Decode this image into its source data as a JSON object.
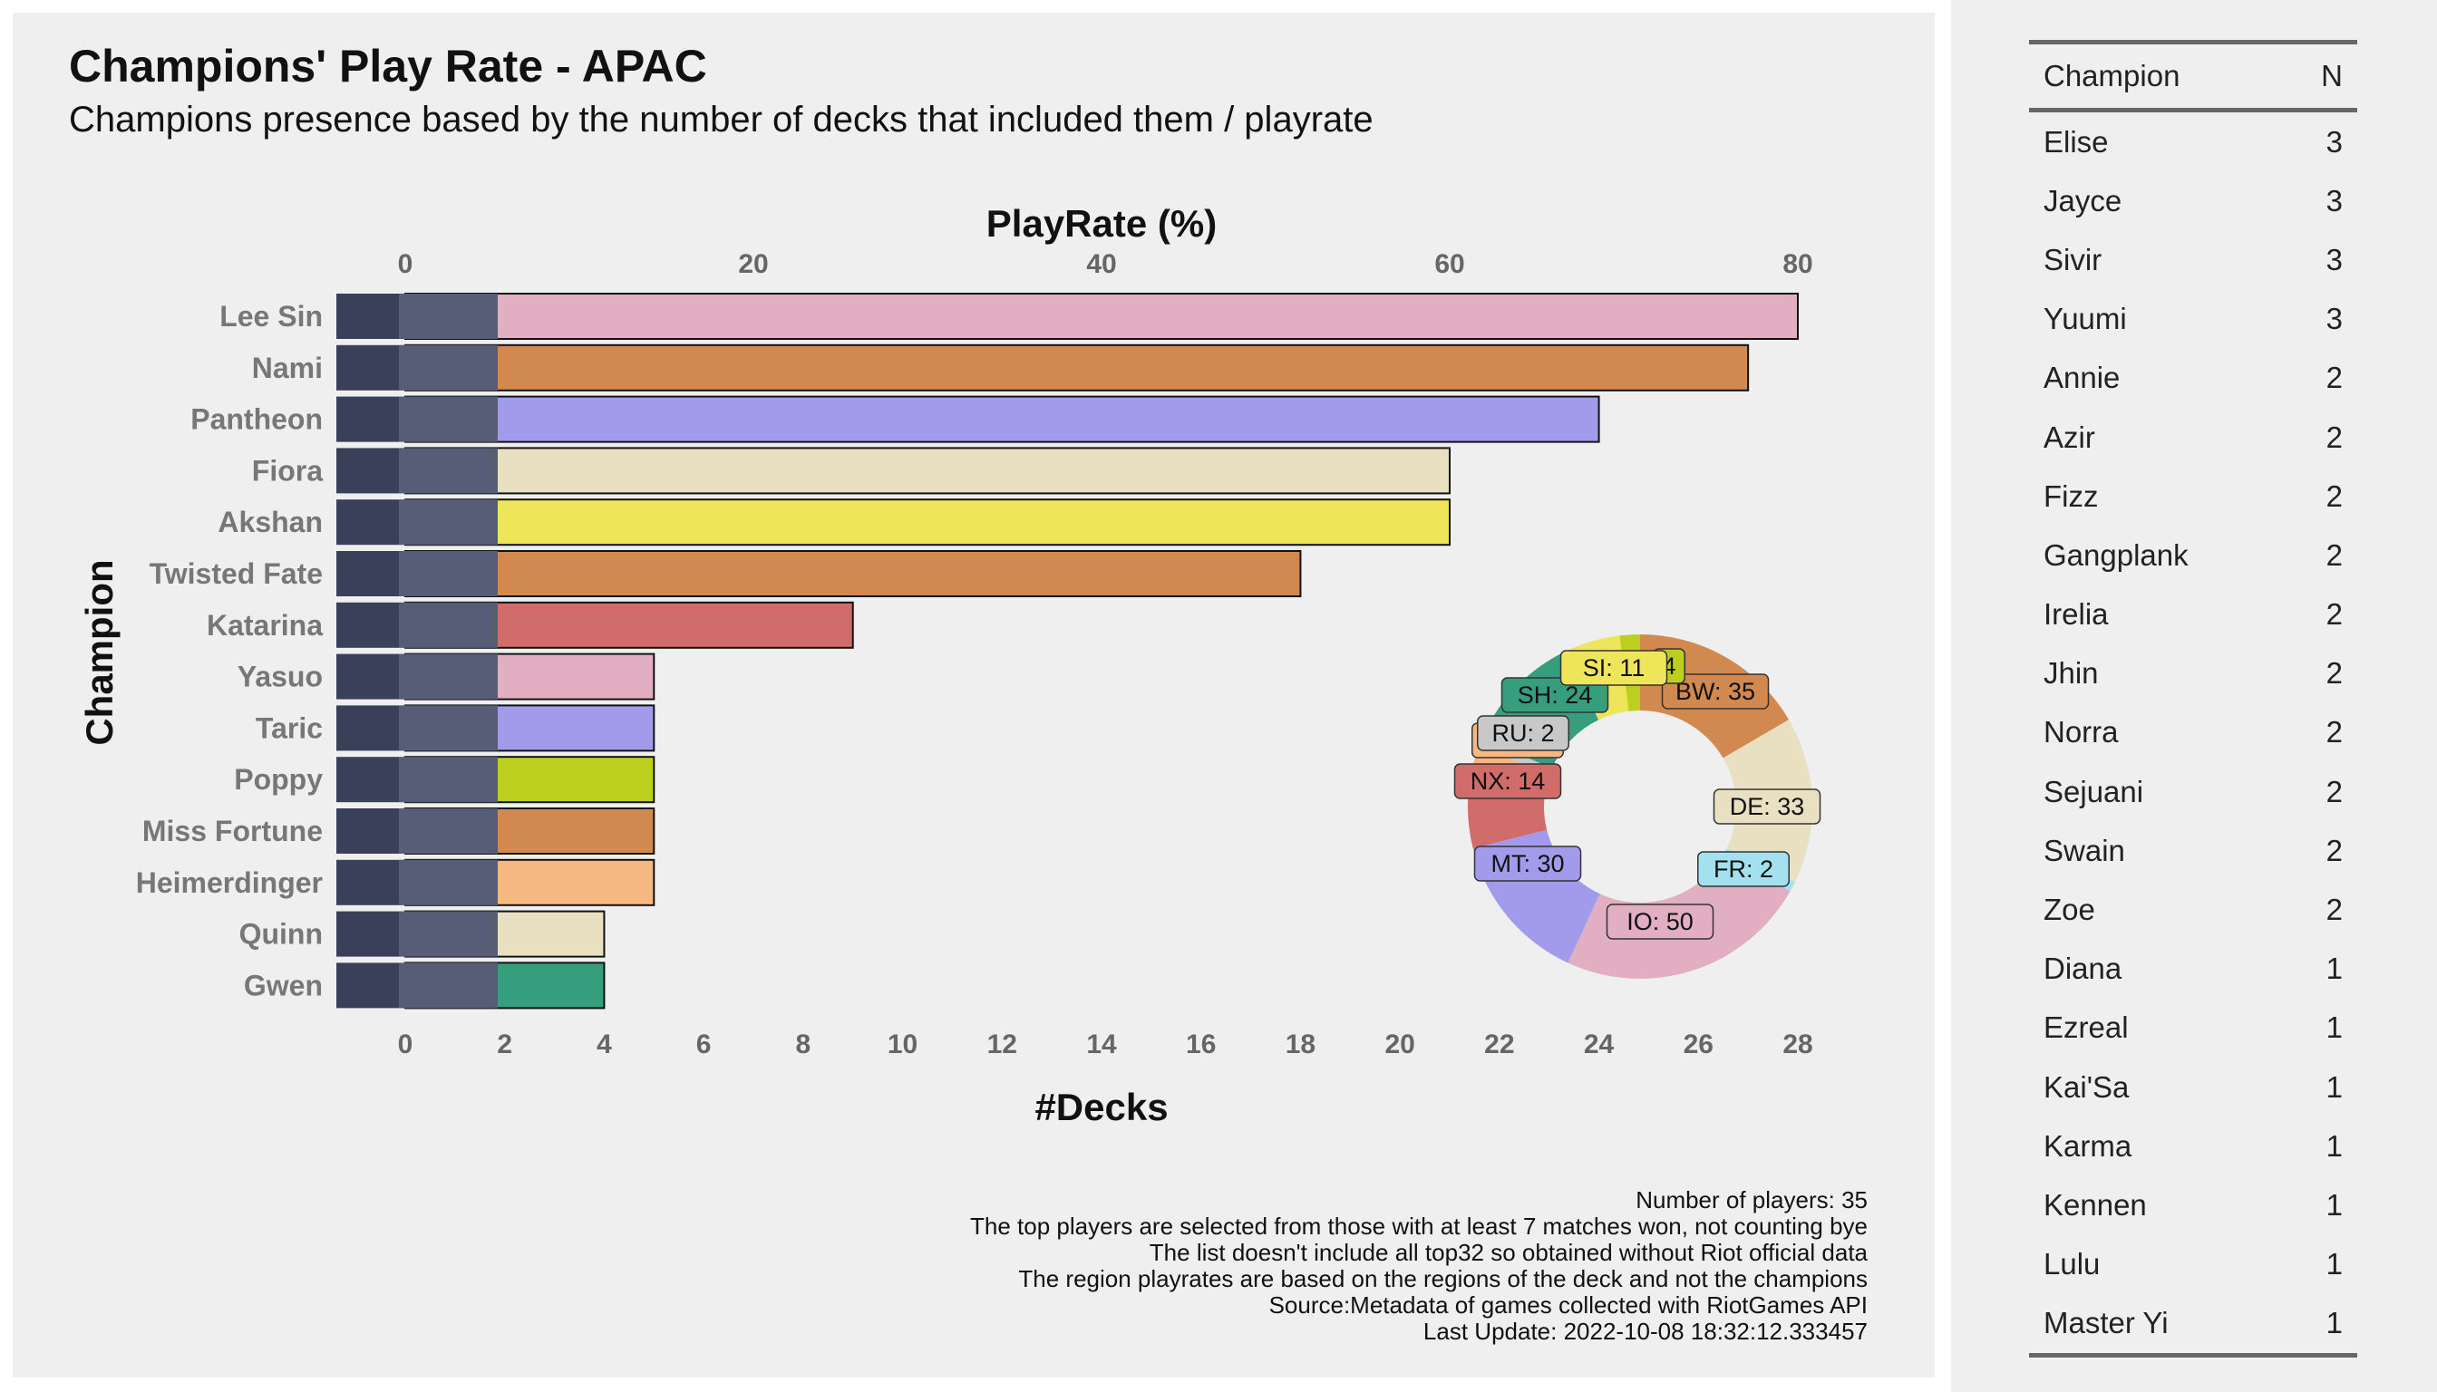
{
  "title": "Champions' Play Rate - APAC",
  "subtitle": "Champions presence based by the number of decks that included them / playrate",
  "captions": [
    "Number of players: 35",
    "The top players are selected from those with at least 7 matches won, not counting bye",
    "The list doesn't include all top32 so obtained without Riot official data",
    "The region playrates are based on the regions of the deck and not the champions",
    "Source:Metadata of games collected with RiotGames API",
    "Last Update: 2022-10-08 18:32:12.333457"
  ],
  "chart_data": [
    {
      "type": "bar",
      "orientation": "horizontal",
      "categories": [
        "Lee Sin",
        "Nami",
        "Pantheon",
        "Fiora",
        "Akshan",
        "Twisted Fate",
        "Katarina",
        "Yasuo",
        "Taric",
        "Poppy",
        "Miss Fortune",
        "Heimerdinger",
        "Quinn",
        "Gwen"
      ],
      "values": [
        28,
        27,
        24,
        21,
        21,
        18,
        9,
        5,
        5,
        5,
        5,
        5,
        4,
        4
      ],
      "colors": [
        "#e1afc1",
        "#d2894f",
        "#a29bec",
        "#e9dfc1",
        "#efe55a",
        "#d2894f",
        "#d06c6a",
        "#e1afc1",
        "#a29bec",
        "#bccf1f",
        "#d2894f",
        "#f5b883",
        "#e9dfc1",
        "#369e7d"
      ],
      "xlabel": "#Decks",
      "xlabel_top": "PlayRate (%)",
      "ylabel": "Champion",
      "xlim": [
        0,
        28
      ],
      "xticks_bottom": [
        0,
        2,
        4,
        6,
        8,
        10,
        12,
        14,
        16,
        18,
        20,
        22,
        24,
        26,
        28
      ],
      "xticks_top": [
        0,
        20,
        40,
        60,
        80
      ]
    },
    {
      "type": "pie",
      "style": "donut",
      "slices": [
        {
          "label": "BW",
          "value": 35,
          "color": "#d2894f"
        },
        {
          "label": "DE",
          "value": 33,
          "color": "#e9dfc1"
        },
        {
          "label": "FR",
          "value": 2,
          "color": "#a3e0f0"
        },
        {
          "label": "IO",
          "value": 50,
          "color": "#e1afc1"
        },
        {
          "label": "MT",
          "value": 30,
          "color": "#a29bec"
        },
        {
          "label": "NX",
          "value": 14,
          "color": "#d06c6a"
        },
        {
          "label": "PZ",
          "value": 6,
          "color": "#f5b883"
        },
        {
          "label": "RU",
          "value": 2,
          "color": "#c8c8c8"
        },
        {
          "label": "SH",
          "value": 24,
          "color": "#369e7d"
        },
        {
          "label": "SI",
          "value": 11,
          "color": "#efe55a"
        },
        {
          "label": "",
          "value": 4,
          "color": "#bccf1f"
        }
      ],
      "labels_shown": [
        "BW: 35",
        "DE: 33",
        "FR: 2",
        "IO: 50",
        "MT: 30",
        "NX: 14",
        "PZ: 6",
        "RU: 2",
        "SH: 24",
        "SI: 11",
        "4"
      ]
    }
  ],
  "table": {
    "headers": [
      "Champion",
      "N"
    ],
    "rows": [
      [
        "Elise",
        "3"
      ],
      [
        "Jayce",
        "3"
      ],
      [
        "Sivir",
        "3"
      ],
      [
        "Yuumi",
        "3"
      ],
      [
        "Annie",
        "2"
      ],
      [
        "Azir",
        "2"
      ],
      [
        "Fizz",
        "2"
      ],
      [
        "Gangplank",
        "2"
      ],
      [
        "Irelia",
        "2"
      ],
      [
        "Jhin",
        "2"
      ],
      [
        "Norra",
        "2"
      ],
      [
        "Sejuani",
        "2"
      ],
      [
        "Swain",
        "2"
      ],
      [
        "Zoe",
        "2"
      ],
      [
        "Diana",
        "1"
      ],
      [
        "Ezreal",
        "1"
      ],
      [
        "Kai'Sa",
        "1"
      ],
      [
        "Karma",
        "1"
      ],
      [
        "Kennen",
        "1"
      ],
      [
        "Lulu",
        "1"
      ],
      [
        "Master Yi",
        "1"
      ]
    ]
  }
}
